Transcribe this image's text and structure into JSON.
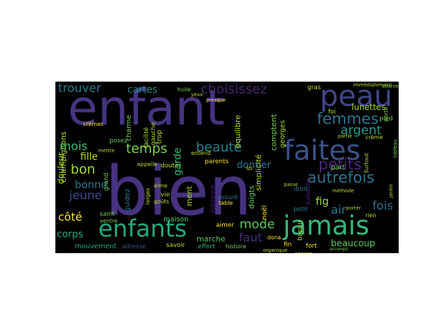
{
  "words": {
    "enfant": "enfant",
    "bien": "bien",
    "peau": "peau",
    "faites": "faites",
    "enfants": "enfants",
    "jamais": "jamais",
    "femmes": "femmes",
    "choisissez": "choisissez",
    "trouver": "trouver",
    "cartes": "cartes",
    "temps": "temps",
    "beaute": "beauté",
    "petits": "petits",
    "autrefois": "autrefois",
    "argent": "argent",
    "mois": "mois",
    "bon": "bon",
    "fille": "fille",
    "bonne": "bonne",
    "jeune": "jeune",
    "cote": "côté",
    "corps": "corps",
    "mouvement": "mouvement",
    "adresse": "adresse",
    "savoir": "savoir",
    "effort": "effort",
    "histoire": "histoire",
    "maison": "maison",
    "marche": "marche",
    "mode": "mode",
    "faut": "faut",
    "donner": "donner",
    "parents": "parents",
    "beaucoup": "beaucoup",
    "fig": "fig",
    "air": "air",
    "fois": "fois",
    "lunettes": "lunettes",
    "pied": "pied",
    "foi": "foi",
    "part": "part",
    "gras": "gras",
    "fin": "fin",
    "fort": "fort",
    "petit": "petit",
    "droit": "droit",
    "aimer": "aimer",
    "assure": "assuré",
    "dona": "dona",
    "ici": "ici",
    "posez": "posez",
    "grand": "grand",
    "ventre": "ventre",
    "douleur": "douleur",
    "saint": "saint",
    "creme": "crème",
    "cremes": "crèmes",
    "champignons": "champignons",
    "charme": "charme",
    "trop": "trop",
    "garde": "garde",
    "equilibre": "équilibre",
    "simplicite": "simplicité",
    "huile": "huile",
    "appelle": "appelle",
    "douter": "douter",
    "vie": "vie",
    "aime": "aime",
    "gouts": "goûts",
    "entend": "entend",
    "noel": "noël",
    "doigts": "doigts",
    "georges": "georges",
    "comptent": "comptent",
    "balloune": "balloune",
    "bassin": "bassin",
    "table": "table",
    "presque": "presque",
    "facilite": "facilité",
    "gauche": "gauche",
    "service": "service",
    "partie": "partie",
    "surtout": "surtout",
    "ment": "ment",
    "guidez": "guidez",
    "larges": "larges",
    "yeux": "yeux",
    "rien": "rien",
    "mettre": "mettre",
    "nombre": "nombre",
    "porter": "porter",
    "besoin": "besoin",
    "apport": "apport",
    "immediatement": "immédiatement",
    "sourire": "sourire",
    "porte": "porte",
    "passe": "passe",
    "soleil": "soleil",
    "doute": "doute",
    "elegance": "élégance",
    "ecran": "écran",
    "methode": "méthode",
    "organique": "organique",
    "cheveux": "cheveux",
    "chaque": "chaque",
    "jardin": "jardin",
    "merci": "merci",
    "amour": "amour",
    "journee": "journée",
    "moment": "moment",
    "tableau": "tableau",
    "reste": "reste",
    "ligne": "ligne",
    "plaisir": "plaisir",
    "accompli": "accompli",
    "gorge": "gorge"
  }
}
